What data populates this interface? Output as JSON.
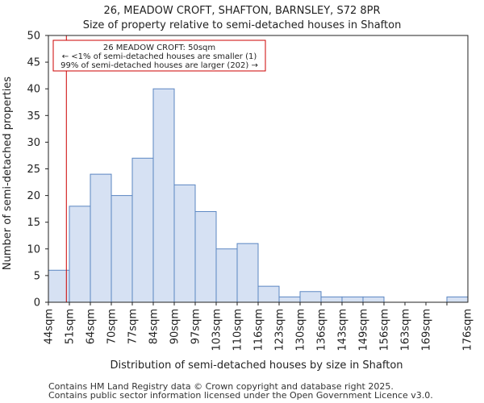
{
  "chart_data": {
    "type": "bar",
    "title_line1": "26, MEADOW CROFT, SHAFTON, BARNSLEY, S72 8PR",
    "title_line2": "Size of property relative to semi-detached houses in Shafton",
    "xlabel": "Distribution of semi-detached houses by size in Shafton",
    "ylabel": "Number of semi-detached properties",
    "ylim": [
      0,
      50
    ],
    "yticks": [
      0,
      5,
      10,
      15,
      20,
      25,
      30,
      35,
      40,
      45,
      50
    ],
    "categories": [
      "44sqm",
      "51sqm",
      "64sqm",
      "70sqm",
      "77sqm",
      "84sqm",
      "90sqm",
      "97sqm",
      "103sqm",
      "110sqm",
      "116sqm",
      "123sqm",
      "130sqm",
      "136sqm",
      "143sqm",
      "149sqm",
      "156sqm",
      "163sqm",
      "169sqm",
      "176sqm"
    ],
    "values": [
      6,
      18,
      24,
      20,
      27,
      40,
      22,
      17,
      10,
      11,
      3,
      1,
      2,
      1,
      1,
      1,
      0,
      0,
      0,
      1
    ],
    "marker": {
      "value_sqm": 50,
      "color": "#cc0000"
    },
    "annotation": {
      "line1": "26 MEADOW CROFT: 50sqm",
      "line2": "← <1% of semi-detached houses are smaller (1)",
      "line3": "99% of semi-detached houses are larger (202) →"
    },
    "colors": {
      "bar_fill": "#d6e1f3",
      "bar_edge": "#5b86c2",
      "marker": "#cc0000"
    }
  },
  "footer": {
    "line1": "Contains HM Land Registry data © Crown copyright and database right 2025.",
    "line2": "Contains public sector information licensed under the Open Government Licence v3.0."
  }
}
